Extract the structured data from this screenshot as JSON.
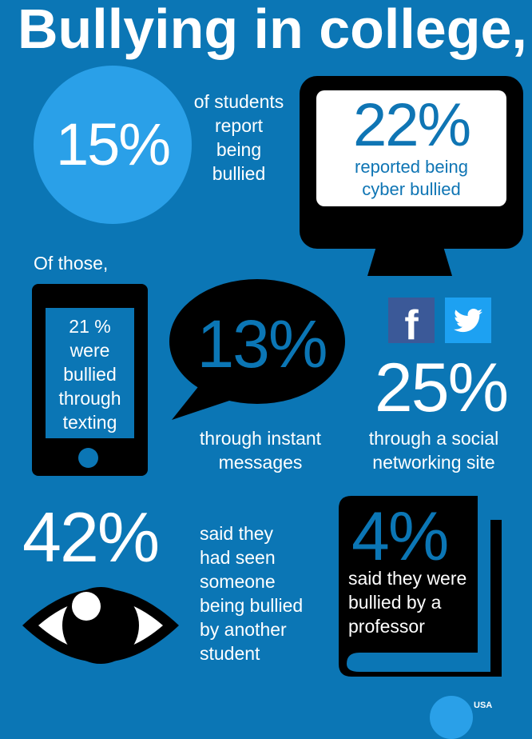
{
  "title": "Bullying in college,",
  "stat_bullied": {
    "value": "15%",
    "lines": [
      "of students",
      "report",
      "being",
      "bullied"
    ]
  },
  "stat_cyber": {
    "value": "22%",
    "lines": [
      "reported being",
      "cyber bullied"
    ]
  },
  "of_those": "Of those,",
  "stat_texting": {
    "lines": [
      "21 %",
      "were",
      "bullied",
      "through",
      "texting"
    ]
  },
  "stat_im": {
    "value": "13%",
    "lines": [
      "through instant",
      "messages"
    ]
  },
  "stat_social": {
    "value": "25%",
    "lines": [
      "through a social",
      "networking site"
    ],
    "icons": [
      "facebook-icon",
      "twitter-icon"
    ]
  },
  "stat_witness": {
    "value": "42%",
    "lines": [
      "said they",
      "had seen",
      "someone",
      "being bullied",
      "by another",
      "student"
    ]
  },
  "stat_professor": {
    "value": "4%",
    "lines": [
      "said they were",
      "bullied by a",
      "professor"
    ]
  },
  "logo": {
    "text": "USA"
  },
  "colors": {
    "background": "#0b76b5",
    "circle": "#2aa0e8",
    "facebook": "#3b5998",
    "twitter": "#1da1f2",
    "black": "#000000"
  }
}
